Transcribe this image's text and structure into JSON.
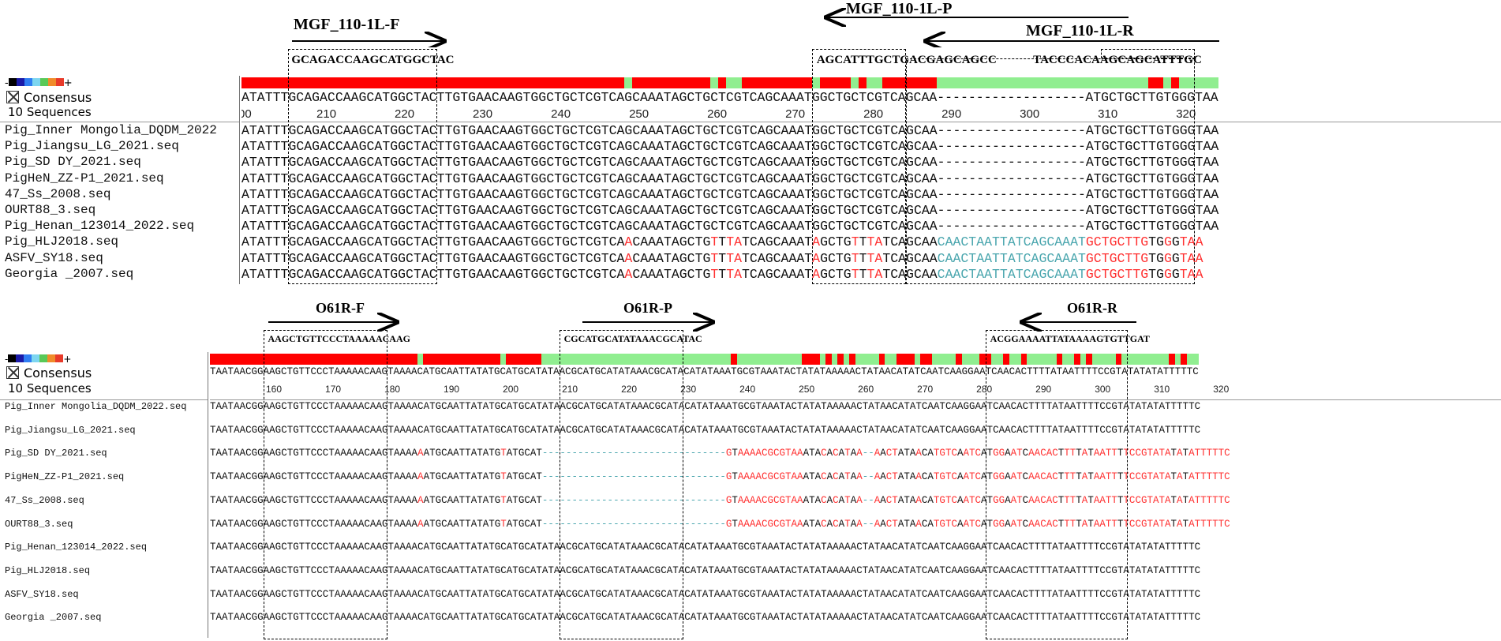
{
  "colors": {
    "conserved": "#ff0000",
    "variable": "#90ee90",
    "mismatch": "#ff3030",
    "insertion": "#4aa6ae",
    "text": "#111111"
  },
  "palette_colors": [
    "#000000",
    "#1a1aa8",
    "#2f7df2",
    "#7dd6f0",
    "#59c957",
    "#f08b2a",
    "#e83a2a"
  ],
  "top": {
    "palette": {
      "minus": "-",
      "plus": "+"
    },
    "consensus_label": "Consensus",
    "count_label": "10 Sequences",
    "consensus_seq": "ATATTTGCAGACCAAGCATGGCTACTTGTGAACAAGTGGCTGCTCGTCAGCAAATAGCTGCTCGTCAGCAAATGGCTGCTCGTCAGCAA-------------------ATGCTGCTTGTGGGTAA",
    "ruler": [
      "00",
      "210",
      "220",
      "230",
      "240",
      "250",
      "260",
      "270",
      "280",
      "290",
      "300",
      "310",
      "320"
    ],
    "names": [
      "Pig_Inner Mongolia_DQDM_2022",
      "Pig_Jiangsu_LG_2021.seq",
      "Pig_SD DY_2021.seq",
      "PigHeN_ZZ-P1_2021.seq",
      "47_Ss_2008.seq",
      "OURT88_3.seq",
      "Pig_Henan_123014_2022.seq",
      "Pig_HLJ2018.seq",
      "ASFV_SY18.seq",
      "Georgia _2007.seq"
    ],
    "seqs": [
      "ATATTTGCAGACCAAGCATGGCTACTTGTGAACAAGTGGCTGCTCGTCAGCAAATAGCTGCTCGTCAGCAAATGGCTGCTCGTCAGCAA-------------------ATGCTGCTTGTGGGTAA",
      "ATATTTGCAGACCAAGCATGGCTACTTGTGAACAAGTGGCTGCTCGTCAGCAAATAGCTGCTCGTCAGCAAATGGCTGCTCGTCAGCAA-------------------ATGCTGCTTGTGGGTAA",
      "ATATTTGCAGACCAAGCATGGCTACTTGTGAACAAGTGGCTGCTCGTCAGCAAATAGCTGCTCGTCAGCAAATGGCTGCTCGTCAGCAA-------------------ATGCTGCTTGTGGGTAA",
      "ATATTTGCAGACCAAGCATGGCTACTTGTGAACAAGTGGCTGCTCGTCAGCAAATAGCTGCTCGTCAGCAAATGGCTGCTCGTCAGCAA-------------------ATGCTGCTTGTGGGTAA",
      "ATATTTGCAGACCAAGCATGGCTACTTGTGAACAAGTGGCTGCTCGTCAGCAAATAGCTGCTCGTCAGCAAATGGCTGCTCGTCAGCAA-------------------ATGCTGCTTGTGGGTAA",
      "ATATTTGCAGACCAAGCATGGCTACTTGTGAACAAGTGGCTGCTCGTCAGCAAATAGCTGCTCGTCAGCAAATGGCTGCTCGTCAGCAA-------------------ATGCTGCTTGTGGGTAA",
      "ATATTTGCAGACCAAGCATGGCTACTTGTGAACAAGTGGCTGCTCGTCAGCAAATAGCTGCTCGTCAGCAAATGGCTGCTCGTCAGCAA-------------------ATGCTGCTTGTGGGTAA",
      "ATATTTGCAGACCAAGCATGGCTACTTGTGAACAAGTGGCTGCTCGTCAACAAATAGCTGTTTATCAGCAAATAGCTGTTTATCAGCAACAACTAATTATCAGCAAATGCTGCTTGTGGGTAA",
      "ATATTTGCAGACCAAGCATGGCTACTTGTGAACAAGTGGCTGCTCGTCAACAAATAGCTGTTTATCAGCAAATAGCTGTTTATCAGCAACAACTAATTATCAGCAAATGCTGCTTGTGGGTAA",
      "ATATTTGCAGACCAAGCATGGCTACTTGTGAACAAGTGGCTGCTCGTCAACAAATAGCTGTTTATCAGCAAATAGCTGTTTATCAGCAACAACTAATTATCAGCAAATGCTGCTTGTGGGTAA"
    ],
    "primers": {
      "f": {
        "label": "MGF_110-1L-F",
        "seq": "GCAGACCAAGCATGGCTAC"
      },
      "p": {
        "label": "MGF_110-1L-P",
        "seq": "AGCATTTGCTGACGAGCAGCC"
      },
      "r": {
        "label": "MGF_110-1L-R",
        "seq": "TACCCACAAGCAGCATTTGC"
      }
    }
  },
  "bottom": {
    "palette": {
      "minus": "-",
      "plus": "+"
    },
    "consensus_label": "Consensus",
    "count_label": "10 Sequences",
    "consensus_seq": "TAATAACGGAAGCTGTTCCCTAAAAACAAGTAAAACATGCAATTATATGCATGCATATAACGCATGCATATAAACGCATACATATAAATGCGTAAATACTATATAAAAACTATAACATATCAATCAAGGAATCAACACTTTTATAATTTTCCGTATATATATTTTTC",
    "ruler": [
      "160",
      "170",
      "180",
      "190",
      "200",
      "210",
      "220",
      "230",
      "240",
      "250",
      "260",
      "270",
      "280",
      "290",
      "300",
      "310",
      "320"
    ],
    "names": [
      "Pig_Inner Mongolia_DQDM_2022.seq",
      "Pig_Jiangsu_LG_2021.seq",
      "Pig_SD DY_2021.seq",
      "PigHeN_ZZ-P1_2021.seq",
      "47_Ss_2008.seq",
      "OURT88_3.seq",
      "Pig_Henan_123014_2022.seq",
      "Pig_HLJ2018.seq",
      "ASFV_SY18.seq",
      "Georgia _2007.seq"
    ],
    "seqs": [
      "TAATAACGGAAGCTGTTCCCTAAAAACAAGTAAAACATGCAATTATATGCATGCATATAACGCATGCATATAAACGCATACATATAAATGCGTAAATACTATATAAAAACTATAACATATCAATCAAGGAATCAACACTTTTATAATTTTCCGTATATATATTTTTC",
      "TAATAACGGAAGCTGTTCCCTAAAAACAAGTAAAACATGCAATTATATGCATGCATATAACGCATGCATATAAACGCATACATATAAATGCGTAAATACTATATAAAAACTATAACATATCAATCAAGGAATCAACACTTTTATAATTTTCCGTATATATATTTTTC",
      "TAATAACGGAAGCTGTTCCCTAAAAACAAGTAAAAAATGCAATTATATGTATGCAT-------------------------------GTAAAACGCGTAAATACACATAA--AACTATAACATGTCAATCATGGAATCAACACTTTTATAATTTTCCGTATATATATTTTTC",
      "TAATAACGGAAGCTGTTCCCTAAAAACAAGTAAAAAATGCAATTATATGTATGCAT-------------------------------GTAAAACGCGTAAATACACATAA--AACTATAACATGTCAATCATGGAATCAACACTTTTATAATTTTCCGTATATATATTTTTC",
      "TAATAACGGAAGCTGTTCCCTAAAAACAAGTAAAAAATGCAATTATATGTATGCAT-------------------------------GTAAAACGCGTAAATACACATAA--AACTATAACATGTCAATCATGGAATCAACACTTTTATAATTTTCCGTATATATATTTTTC",
      "TAATAACGGAAGCTGTTCCCTAAAAACAAGTAAAAAATGCAATTATATGTATGCAT-------------------------------GTAAAACGCGTAAATACACATAA--AACTATAACATGTCAATCATGGAATCAACACTTTTATAATTTTCCGTATATATATTTTTC",
      "TAATAACGGAAGCTGTTCCCTAAAAACAAGTAAAACATGCAATTATATGCATGCATATAACGCATGCATATAAACGCATACATATAAATGCGTAAATACTATATAAAAACTATAACATATCAATCAAGGAATCAACACTTTTATAATTTTCCGTATATATATTTTTC",
      "TAATAACGGAAGCTGTTCCCTAAAAACAAGTAAAACATGCAATTATATGCATGCATATAACGCATGCATATAAACGCATACATATAAATGCGTAAATACTATATAAAAACTATAACATATCAATCAAGGAATCAACACTTTTATAATTTTCCGTATATATATTTTTC",
      "TAATAACGGAAGCTGTTCCCTAAAAACAAGTAAAACATGCAATTATATGCATGCATATAACGCATGCATATAAACGCATACATATAAATGCGTAAATACTATATAAAAACTATAACATATCAATCAAGGAATCAACACTTTTATAATTTTCCGTATATATATTTTTC",
      "TAATAACGGAAGCTGTTCCCTAAAAACAAGTAAAACATGCAATTATATGCATGCATATAACGCATGCATATAAACGCATACATATAAATGCGTAAATACTATATAAAAACTATAACATATCAATCAAGGAATCAACACTTTTATAATTTTCCGTATATATATTTTTC"
    ],
    "primers": {
      "f": {
        "label": "O61R-F",
        "seq": "AAGCTGTTCCCTAAAAACAAG"
      },
      "p": {
        "label": "O61R-P",
        "seq": "CGCATGCATATAAACGCATAC"
      },
      "r": {
        "label": "O61R-R",
        "seq": "ACGGAAAATTATAAAAGTGTTGAT"
      }
    }
  }
}
